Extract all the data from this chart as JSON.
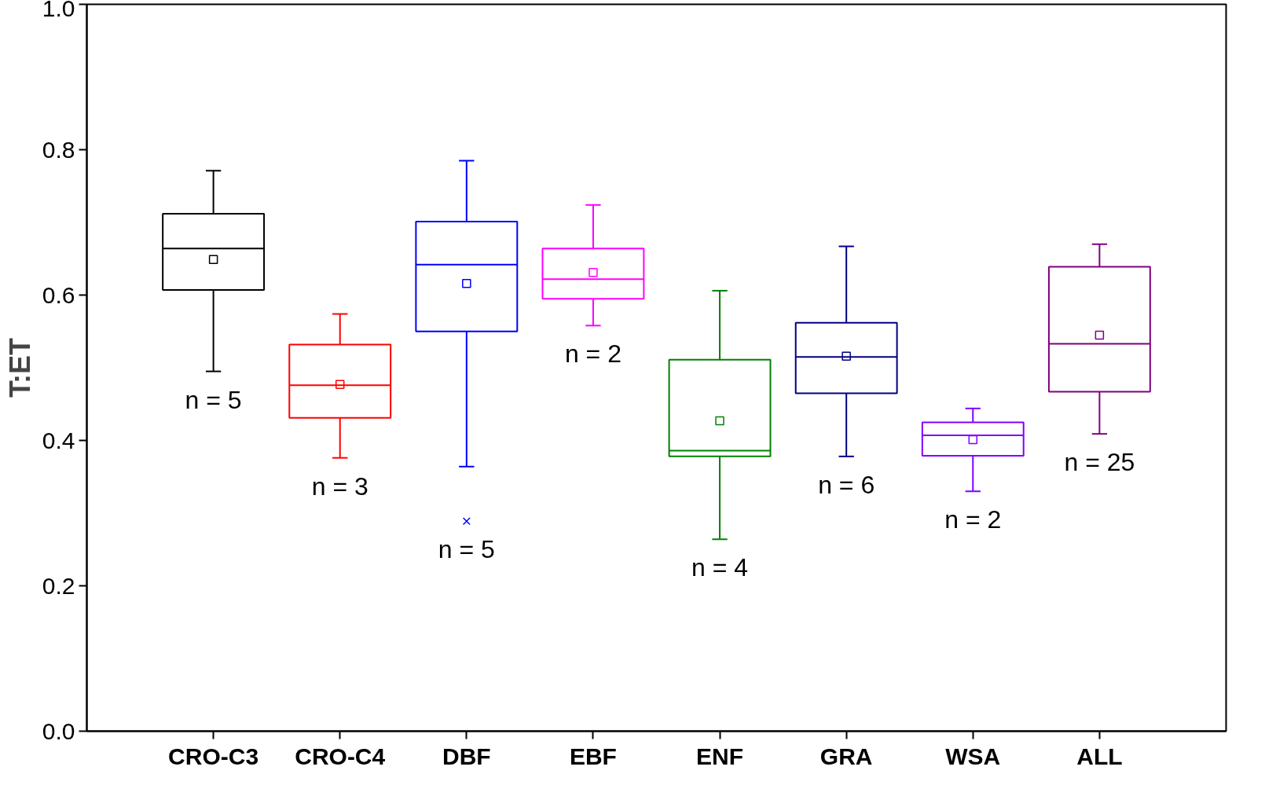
{
  "chart_data": {
    "type": "box",
    "ylabel": "T:ET",
    "categories": [
      "CRO-C3",
      "CRO-C4",
      "DBF",
      "EBF",
      "ENF",
      "GRA",
      "WSA",
      "ALL"
    ],
    "colors": [
      "#000000",
      "#ff0000",
      "#0000ff",
      "#ff00ff",
      "#008000",
      "#000080",
      "#8000ff",
      "#800080"
    ],
    "boxes": [
      {
        "low": 0.495,
        "q1": 0.607,
        "median": 0.664,
        "q3": 0.712,
        "high": 0.771,
        "mean": 0.649
      },
      {
        "low": 0.376,
        "q1": 0.431,
        "median": 0.476,
        "q3": 0.532,
        "high": 0.574,
        "mean": 0.477
      },
      {
        "low": 0.364,
        "q1": 0.55,
        "median": 0.642,
        "q3": 0.701,
        "high": 0.785,
        "mean": 0.616,
        "outliers": [
          0.289
        ]
      },
      {
        "low": 0.558,
        "q1": 0.595,
        "median": 0.622,
        "q3": 0.664,
        "high": 0.724,
        "mean": 0.631
      },
      {
        "low": 0.264,
        "q1": 0.378,
        "median": 0.386,
        "q3": 0.511,
        "high": 0.606,
        "mean": 0.427
      },
      {
        "low": 0.378,
        "q1": 0.465,
        "median": 0.515,
        "q3": 0.562,
        "high": 0.667,
        "mean": 0.516
      },
      {
        "low": 0.33,
        "q1": 0.379,
        "median": 0.407,
        "q3": 0.425,
        "high": 0.444,
        "mean": 0.401
      },
      {
        "low": 0.409,
        "q1": 0.467,
        "median": 0.533,
        "q3": 0.639,
        "high": 0.67,
        "mean": 0.545
      }
    ],
    "ylim": [
      0,
      1
    ],
    "yticks": [
      {
        "value": 0,
        "label": "0.0"
      },
      {
        "value": 0.2,
        "label": "0.2"
      },
      {
        "value": 0.4,
        "label": "0.4"
      },
      {
        "value": 0.6,
        "label": "0.6"
      },
      {
        "value": 0.8,
        "label": "0.8"
      },
      {
        "value": 1,
        "label": "1.0"
      }
    ],
    "annotations": [
      "n = 5",
      "n = 3",
      "n = 5",
      "n = 2",
      "n = 4",
      "n = 6",
      "n = 2",
      "n = 25"
    ],
    "grid": false
  }
}
